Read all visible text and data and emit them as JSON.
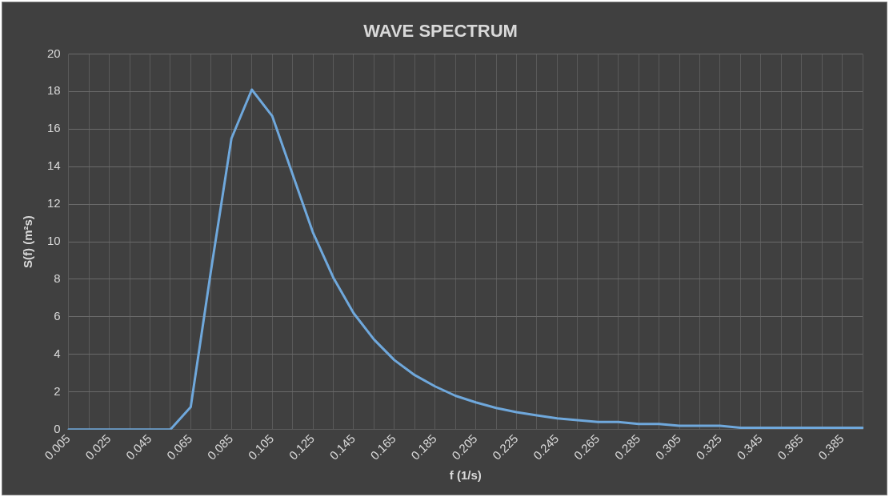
{
  "chart_data": {
    "type": "line",
    "title": "WAVE SPECTRUM",
    "xlabel": "f (1/s)",
    "ylabel": "S(f) (m²s)",
    "categories": [
      "0.005",
      null,
      "0.025",
      null,
      "0.045",
      null,
      "0.065",
      null,
      "0.085",
      null,
      "0.105",
      null,
      "0.125",
      null,
      "0.145",
      null,
      "0.165",
      null,
      "0.185",
      null,
      "0.205",
      null,
      "0.225",
      null,
      "0.245",
      null,
      "0.265",
      null,
      "0.285",
      null,
      "0.305",
      null,
      "0.325",
      null,
      "0.345",
      null,
      "0.365",
      null,
      "0.385",
      null
    ],
    "series": [
      {
        "color": "#6fa8dc",
        "values": [
          0,
          0,
          0,
          0,
          0,
          0,
          1.2,
          8.5,
          15.5,
          18.1,
          16.7,
          13.6,
          10.5,
          8.1,
          6.2,
          4.8,
          3.7,
          2.9,
          2.3,
          1.8,
          1.45,
          1.15,
          0.93,
          0.76,
          0.6,
          0.5,
          0.4,
          0.4,
          0.3,
          0.3,
          0.2,
          0.2,
          0.2,
          0.1,
          0.1,
          0.1,
          0.1,
          0.1,
          0.1,
          0.1
        ]
      }
    ],
    "ylim": [
      0,
      20
    ],
    "yticks": [
      0,
      2,
      4,
      6,
      8,
      10,
      12,
      14,
      16,
      18,
      20
    ],
    "grid": true,
    "legend": false,
    "marker": "none",
    "line_style": "solid"
  }
}
